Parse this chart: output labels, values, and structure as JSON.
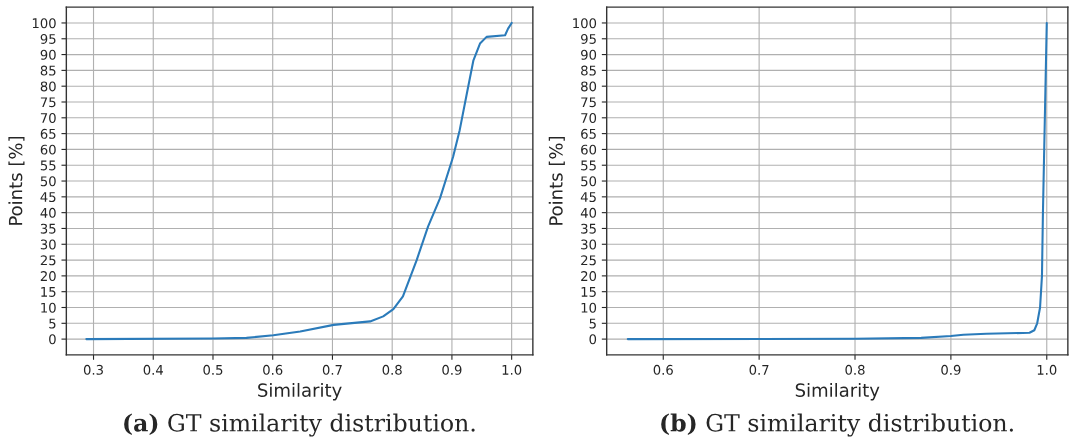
{
  "chart_data": [
    {
      "type": "line",
      "xlabel": "Similarity",
      "ylabel": "Points [%]",
      "grid": true,
      "legend": false,
      "xlim": [
        0.2545,
        1.0355
      ],
      "ylim": [
        -5,
        105
      ],
      "xticks": [
        0.3,
        0.4,
        0.5,
        0.6,
        0.7,
        0.8,
        0.9,
        {
          "value": 1,
          "label": "1.0"
        }
      ],
      "yticks": [
        0,
        5,
        10,
        15,
        20,
        25,
        30,
        35,
        40,
        45,
        50,
        55,
        60,
        65,
        70,
        75,
        80,
        85,
        90,
        95,
        100
      ],
      "annotations": [
        "(a)",
        "GT similarity distribution."
      ],
      "series": [
        {
          "color": "#2b7bba",
          "x": [
            0.288,
            0.5,
            0.556,
            0.601,
            0.646,
            0.702,
            0.763,
            0.785,
            0.802,
            0.818,
            0.841,
            0.86,
            0.88,
            0.902,
            0.913,
            0.925,
            0.936,
            0.947,
            0.958,
            0.989,
            0.994,
            1.0
          ],
          "values": [
            0,
            0.2,
            0.4,
            1.2,
            2.4,
            4.5,
            5.6,
            7.2,
            9.5,
            13.5,
            25,
            35.6,
            44.5,
            57.7,
            66.1,
            77.7,
            88.2,
            93.5,
            95.6,
            96.1,
            98.2,
            100
          ]
        }
      ]
    },
    {
      "type": "line",
      "xlabel": "Similarity",
      "ylabel": "Points [%]",
      "grid": true,
      "legend": false,
      "xlim": [
        0.541,
        1.022
      ],
      "ylim": [
        -5,
        105
      ],
      "xticks": [
        0.6,
        0.7,
        0.8,
        0.9,
        {
          "value": 1,
          "label": "1.0"
        }
      ],
      "yticks": [
        0,
        5,
        10,
        15,
        20,
        25,
        30,
        35,
        40,
        45,
        50,
        55,
        60,
        65,
        70,
        75,
        80,
        85,
        90,
        95,
        100
      ],
      "annotations": [
        "(b)",
        "GT similarity distribution."
      ],
      "series": [
        {
          "color": "#2b7bba",
          "x": [
            0.563,
            0.8,
            0.869,
            0.9,
            0.913,
            0.937,
            0.982,
            0.987,
            0.99,
            0.993,
            0.995,
            0.996,
            0.998,
            1.0
          ],
          "values": [
            0,
            0.1,
            0.4,
            1.0,
            1.4,
            1.7,
            2.0,
            2.8,
            5,
            10,
            20,
            40,
            70,
            100
          ]
        }
      ]
    }
  ]
}
